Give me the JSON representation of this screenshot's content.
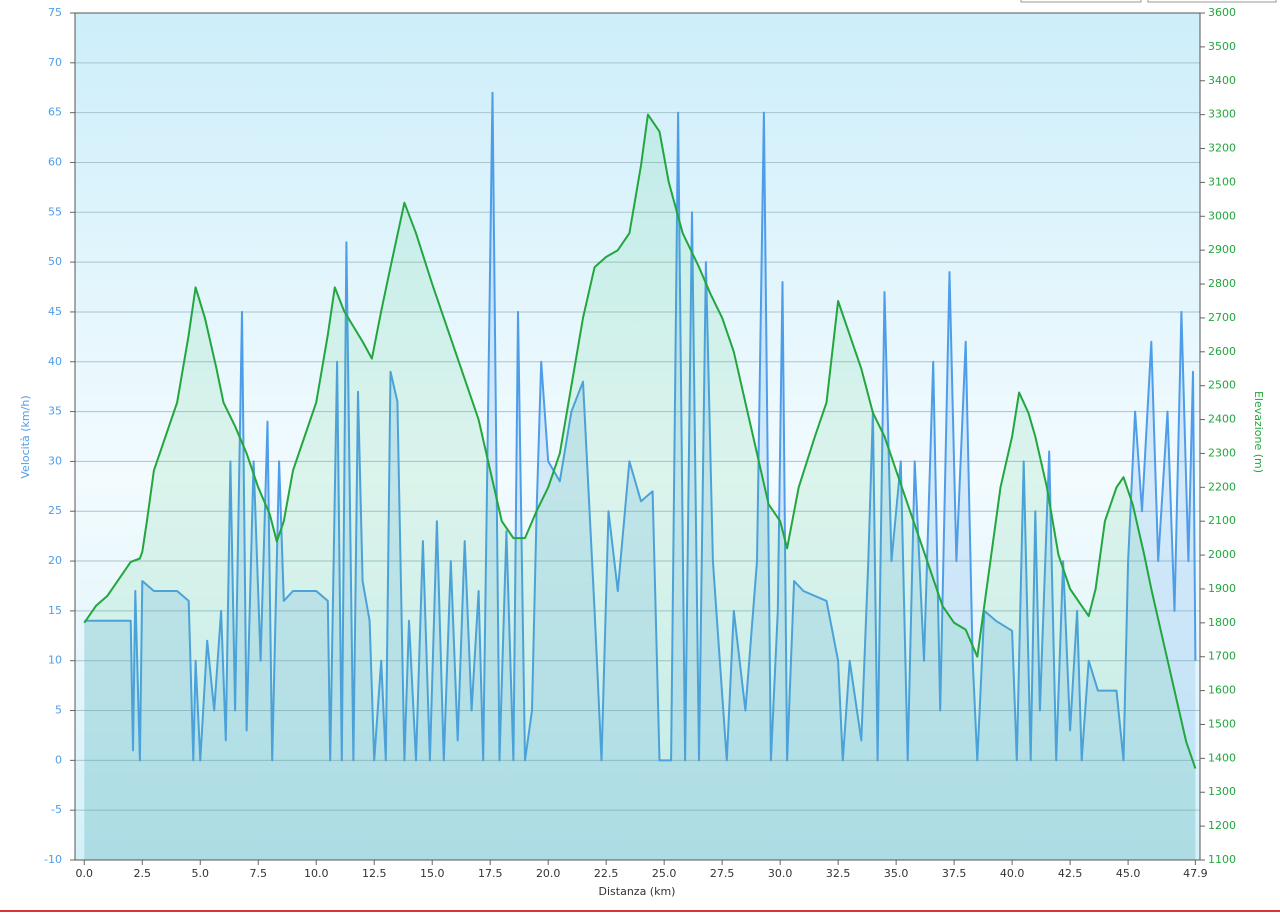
{
  "chart_data": {
    "type": "line",
    "x_label": "Distanza  (km)",
    "y_label": "Velocità (km/h)",
    "y2_label": "Elevazione (m)",
    "xlim": [
      -0.4,
      48.1
    ],
    "xticks": [
      {
        "value": 0,
        "label": "0.0"
      },
      2.5,
      {
        "value": 5,
        "label": "5.0"
      },
      7.5,
      {
        "value": 10,
        "label": "10.0"
      },
      12.5,
      {
        "value": 15,
        "label": "15.0"
      },
      17.5,
      {
        "value": 20,
        "label": "20.0"
      },
      22.5,
      {
        "value": 25,
        "label": "25.0"
      },
      27.5,
      {
        "value": 30,
        "label": "30.0"
      },
      32.5,
      {
        "value": 35,
        "label": "35.0"
      },
      37.5,
      {
        "value": 40,
        "label": "40.0"
      },
      42.5,
      {
        "value": 45,
        "label": "45.0"
      },
      47.9
    ],
    "ylim": [
      -10,
      75
    ],
    "yticks": [
      -10,
      -5,
      0,
      5,
      10,
      15,
      20,
      25,
      30,
      35,
      40,
      45,
      50,
      55,
      60,
      65,
      70,
      75
    ],
    "y2lim": [
      1100,
      3600
    ],
    "y2ticks": [
      1100,
      1200,
      1300,
      1400,
      1500,
      1600,
      1700,
      1800,
      1900,
      2000,
      2100,
      2200,
      2300,
      2400,
      2500,
      2600,
      2700,
      2800,
      2900,
      3000,
      3100,
      3200,
      3300,
      3400,
      3500,
      3600
    ],
    "grid": true,
    "series": [
      {
        "color": "#4f9de8",
        "axis": "y",
        "x": [
          0,
          1,
          2,
          2.1,
          2.2,
          2.4,
          2.5,
          3,
          4,
          4.5,
          4.7,
          4.8,
          5,
          5.3,
          5.6,
          5.9,
          6.1,
          6.3,
          6.5,
          6.8,
          7,
          7.3,
          7.6,
          7.9,
          8.1,
          8.4,
          8.6,
          9,
          10,
          10.5,
          10.6,
          10.9,
          11.1,
          11.3,
          11.6,
          11.8,
          12,
          12.3,
          12.5,
          12.8,
          13,
          13.2,
          13.5,
          13.8,
          14,
          14.3,
          14.6,
          14.9,
          15.2,
          15.5,
          15.8,
          16.1,
          16.4,
          16.7,
          17,
          17.2,
          17.6,
          17.9,
          18.2,
          18.5,
          18.7,
          19,
          19.3,
          19.5,
          19.7,
          20,
          20.5,
          21,
          21.5,
          22,
          22.3,
          22.6,
          23,
          23.5,
          24,
          24.5,
          24.8,
          25.3,
          25.6,
          25.9,
          26.2,
          26.5,
          26.8,
          27.1,
          27.4,
          27.7,
          28,
          28.5,
          29,
          29.3,
          29.6,
          29.9,
          30.1,
          30.3,
          30.6,
          31,
          32,
          32.5,
          32.7,
          33,
          33.5,
          33.8,
          34,
          34.2,
          34.5,
          34.8,
          35.2,
          35.5,
          35.8,
          36.2,
          36.6,
          36.9,
          37.3,
          37.6,
          38,
          38.3,
          38.5,
          38.8,
          39.3,
          40,
          40.2,
          40.5,
          40.8,
          41,
          41.2,
          41.6,
          41.9,
          42.2,
          42.5,
          42.8,
          43,
          43.3,
          43.7,
          44.5,
          44.8,
          45,
          45.3,
          45.6,
          46,
          46.3,
          46.7,
          47,
          47.3,
          47.6,
          47.8,
          47.9
        ],
        "values": [
          14,
          14,
          14,
          1,
          17,
          0,
          18,
          17,
          17,
          16,
          0,
          10,
          0,
          12,
          5,
          15,
          2,
          30,
          5,
          45,
          3,
          30,
          10,
          34,
          0,
          30,
          16,
          17,
          17,
          16,
          0,
          40,
          0,
          52,
          0,
          37,
          18,
          14,
          0,
          10,
          0,
          39,
          36,
          0,
          14,
          0,
          22,
          0,
          24,
          0,
          20,
          2,
          22,
          5,
          17,
          0,
          67,
          0,
          23,
          0,
          45,
          0,
          5,
          25,
          40,
          30,
          28,
          35,
          38,
          15,
          0,
          25,
          17,
          30,
          26,
          27,
          0,
          0,
          65,
          0,
          55,
          0,
          50,
          20,
          10,
          0,
          15,
          5,
          20,
          65,
          0,
          15,
          48,
          0,
          18,
          17,
          16,
          10,
          0,
          10,
          2,
          20,
          35,
          0,
          47,
          20,
          30,
          0,
          30,
          10,
          40,
          5,
          49,
          20,
          42,
          10,
          0,
          15,
          14,
          13,
          0,
          30,
          0,
          25,
          5,
          31,
          0,
          20,
          3,
          15,
          0,
          10,
          7,
          7,
          0,
          20,
          35,
          25,
          42,
          20,
          35,
          15,
          45,
          20,
          39,
          10
        ]
      },
      {
        "color": "#22a63e",
        "axis": "y2",
        "x": [
          0,
          0.5,
          1,
          1.5,
          2,
          2.4,
          2.5,
          2.7,
          3,
          3.5,
          4,
          4.5,
          4.8,
          5.2,
          5.7,
          6,
          6.5,
          7,
          7.5,
          8,
          8.3,
          8.6,
          9,
          9.5,
          10,
          10.5,
          10.8,
          11.2,
          12,
          12.4,
          12.8,
          13.2,
          13.8,
          14.3,
          15,
          15.5,
          16,
          16.5,
          17,
          17.5,
          18,
          18.5,
          19,
          19.5,
          20,
          20.5,
          21,
          21.5,
          22,
          22.5,
          23,
          23.5,
          24,
          24.3,
          24.8,
          25.2,
          25.8,
          26.5,
          27,
          27.5,
          28,
          28.5,
          29,
          29.5,
          30,
          30.3,
          30.8,
          31.5,
          32,
          32.5,
          33,
          33.5,
          34,
          34.5,
          35,
          35.5,
          36,
          36.5,
          37,
          37.5,
          38,
          38.5,
          39,
          39.5,
          40,
          40.3,
          40.7,
          41,
          41.5,
          42,
          42.5,
          43,
          43.3,
          43.6,
          44,
          44.5,
          44.8,
          45.2,
          45.7,
          46,
          46.5,
          47,
          47.5,
          47.9
        ],
        "values": [
          1800,
          1850,
          1880,
          1930,
          1980,
          1990,
          2010,
          2100,
          2250,
          2350,
          2450,
          2650,
          2790,
          2700,
          2550,
          2450,
          2380,
          2300,
          2200,
          2120,
          2040,
          2100,
          2250,
          2350,
          2450,
          2650,
          2790,
          2720,
          2630,
          2580,
          2720,
          2850,
          3040,
          2950,
          2800,
          2700,
          2600,
          2500,
          2400,
          2250,
          2100,
          2050,
          2050,
          2130,
          2200,
          2300,
          2500,
          2700,
          2850,
          2880,
          2900,
          2950,
          3150,
          3300,
          3250,
          3100,
          2950,
          2850,
          2770,
          2700,
          2600,
          2450,
          2300,
          2150,
          2100,
          2020,
          2200,
          2350,
          2450,
          2750,
          2650,
          2550,
          2420,
          2350,
          2250,
          2150,
          2050,
          1950,
          1850,
          1800,
          1780,
          1700,
          1950,
          2200,
          2350,
          2480,
          2420,
          2350,
          2200,
          2000,
          1900,
          1850,
          1820,
          1900,
          2100,
          2200,
          2230,
          2150,
          2000,
          1900,
          1750,
          1600,
          1450,
          1370
        ]
      }
    ]
  }
}
